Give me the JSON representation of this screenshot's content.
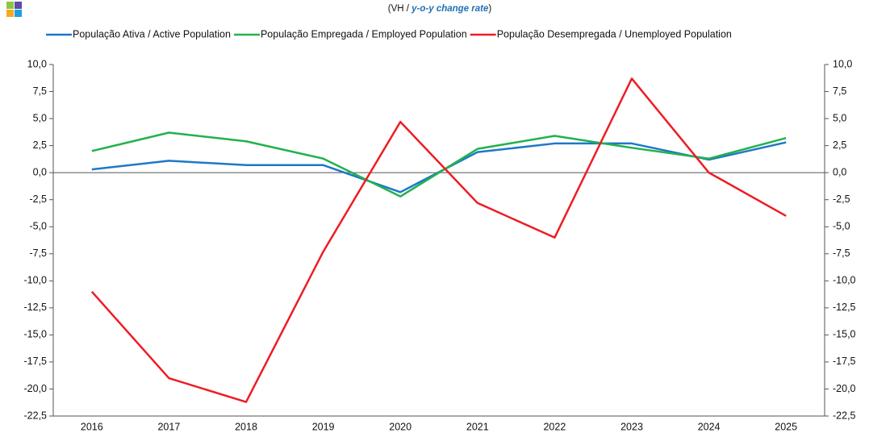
{
  "chart_data": {
    "type": "line",
    "subtitle": {
      "text": "(VH / ",
      "emphasis": "y-o-y change rate",
      "end": ")"
    },
    "categories": [
      "2016",
      "2017",
      "2018",
      "2019",
      "2020",
      "2021",
      "2022",
      "2023",
      "2024",
      "2025"
    ],
    "series": [
      {
        "name": "População Ativa / Active Population",
        "color": "#1f77c8",
        "values": [
          0.3,
          1.1,
          0.7,
          0.7,
          -1.8,
          1.9,
          2.7,
          2.7,
          1.2,
          2.8
        ]
      },
      {
        "name": "População Empregada /  Employed Population",
        "color": "#22b24c",
        "values": [
          2.0,
          3.7,
          2.9,
          1.3,
          -2.2,
          2.2,
          3.4,
          2.3,
          1.3,
          3.2
        ]
      },
      {
        "name": "População Desempregada / Unemployed Population",
        "color": "#ee1c24",
        "values": [
          -11.0,
          -19.0,
          -21.2,
          -7.3,
          4.7,
          -2.8,
          -6.0,
          8.7,
          0.0,
          -4.0
        ]
      }
    ],
    "ylim": [
      -22.5,
      10
    ],
    "yticks": [
      {
        "value": 10,
        "label": "10,0"
      },
      {
        "value": 7.5,
        "label": "7,5"
      },
      {
        "value": 5,
        "label": "5,0"
      },
      {
        "value": 2.5,
        "label": "2,5"
      },
      {
        "value": 0,
        "label": "0,0"
      },
      {
        "value": -2.5,
        "label": "-2,5"
      },
      {
        "value": -5,
        "label": "-5,0"
      },
      {
        "value": -7.5,
        "label": "-7,5"
      },
      {
        "value": -10,
        "label": "-10,0"
      },
      {
        "value": -12.5,
        "label": "-12,5"
      },
      {
        "value": -15,
        "label": "-15,0"
      },
      {
        "value": -17.5,
        "label": "-17,5"
      },
      {
        "value": -20,
        "label": "-20,0"
      },
      {
        "value": -22.5,
        "label": "-22,5"
      }
    ],
    "y2lim": [
      -22.5,
      10
    ],
    "y2ticks": [
      {
        "value": 10,
        "label": "10,0"
      },
      {
        "value": 7.5,
        "label": "7,5"
      },
      {
        "value": 5,
        "label": "5,0"
      },
      {
        "value": 2.5,
        "label": "2,5"
      },
      {
        "value": 0,
        "label": "0,0"
      },
      {
        "value": -2.5,
        "label": "-2,5"
      },
      {
        "value": -5,
        "label": "-5,0"
      },
      {
        "value": -7.5,
        "label": "-7,5"
      },
      {
        "value": -10,
        "label": "-10,0"
      },
      {
        "value": -12.5,
        "label": "-12,5"
      },
      {
        "value": -15,
        "label": "-15,0"
      },
      {
        "value": -17.5,
        "label": "-17,5"
      },
      {
        "value": -20,
        "label": "-20,0"
      },
      {
        "value": -22.5,
        "label": "-22,5"
      }
    ],
    "grid": false
  }
}
